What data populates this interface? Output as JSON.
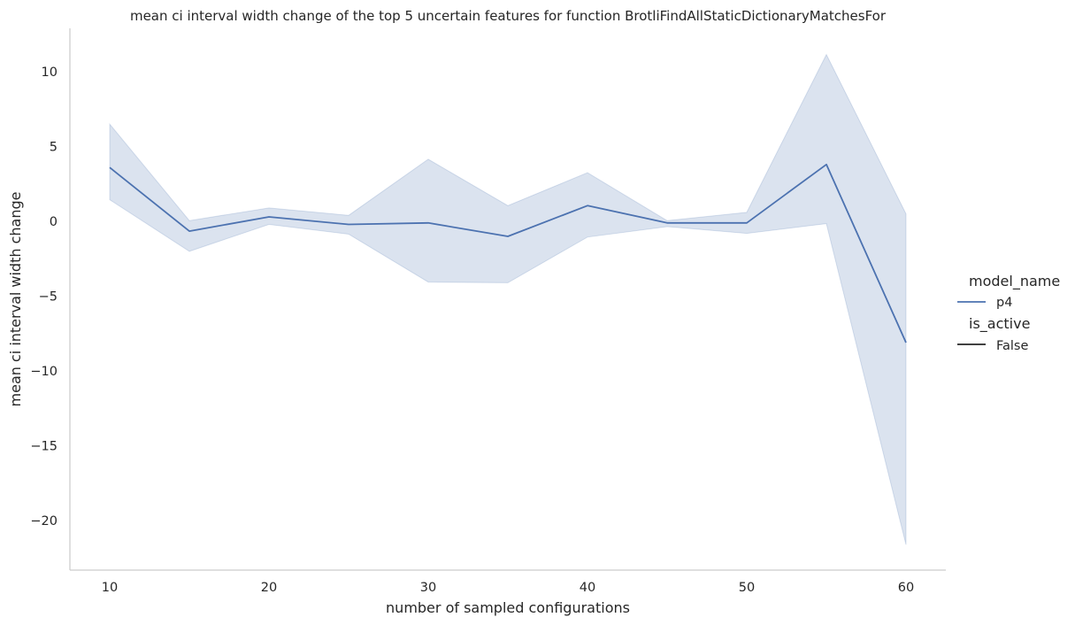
{
  "chart_data": {
    "type": "line",
    "title": "mean ci interval width change of the top 5 uncertain features for function BrotliFindAllStaticDictionaryMatchesFor",
    "xlabel": "number of sampled configurations",
    "ylabel": "mean ci interval width change",
    "xlim": [
      7.5,
      62.5
    ],
    "ylim": [
      -23.3,
      12.9
    ],
    "xticks": [
      10,
      20,
      30,
      40,
      50,
      60
    ],
    "yticks": [
      10,
      5,
      0,
      -5,
      -10,
      -15,
      -20
    ],
    "ytick_labels": [
      "10",
      "5",
      "0",
      "−5",
      "−10",
      "−15",
      "−20"
    ],
    "grid": false,
    "legend": {
      "placement": "right",
      "hue_title": "model_name",
      "hue_entries": [
        "p4"
      ],
      "style_title": "is_active",
      "style_entries": [
        "False"
      ]
    },
    "x": [
      10,
      15,
      20,
      25,
      30,
      35,
      40,
      45,
      50,
      55,
      60
    ],
    "series": [
      {
        "name": "p4",
        "color": "#4c72b0",
        "values": [
          3.6,
          -0.65,
          0.3,
          -0.2,
          -0.1,
          -1.0,
          1.05,
          -0.1,
          -0.1,
          3.8,
          -8.1
        ],
        "ci_lower": [
          1.45,
          -2.0,
          -0.2,
          -0.85,
          -4.05,
          -4.1,
          -1.05,
          -0.35,
          -0.8,
          -0.15,
          -21.6
        ],
        "ci_upper": [
          6.5,
          0.05,
          0.9,
          0.4,
          4.15,
          1.05,
          3.25,
          0.05,
          0.6,
          11.15,
          0.5
        ]
      }
    ]
  }
}
